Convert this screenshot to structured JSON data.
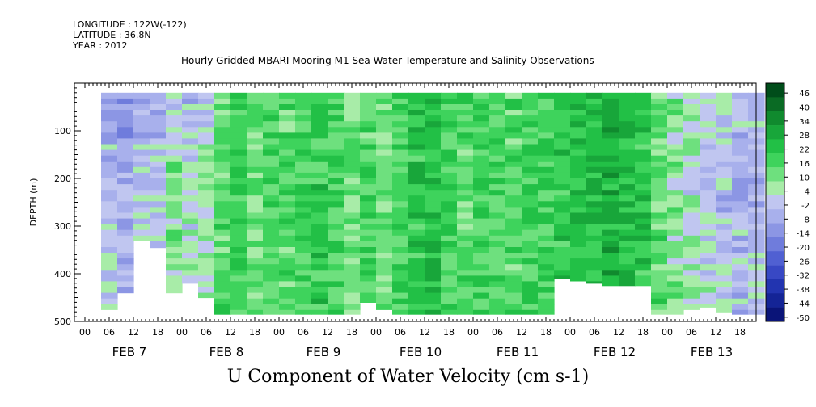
{
  "header": {
    "longitude": "LONGITUDE : 122W(-122)",
    "latitude": "LATITUDE : 36.8N",
    "year": "YEAR : 2012"
  },
  "chart_data": {
    "type": "heatmap",
    "title": "Hourly Gridded MBARI Mooring M1 Sea Water Temperature and Salinity Observations",
    "bottom_title": "U Component of Water Velocity (cm s-1)",
    "ylabel": "DEPTH (m)",
    "ylim": [
      500,
      0
    ],
    "yticks": [
      100,
      200,
      300,
      400,
      500
    ],
    "x_hour_ticks": [
      "00",
      "06",
      "12",
      "18",
      "00",
      "06",
      "12",
      "18",
      "00",
      "06",
      "12",
      "18",
      "00",
      "06",
      "12",
      "18",
      "00",
      "06",
      "12",
      "18",
      "00",
      "06",
      "12",
      "18",
      "00",
      "06",
      "12",
      "18"
    ],
    "x_days": [
      "FEB 7",
      "FEB 8",
      "FEB 9",
      "FEB 10",
      "FEB 11",
      "FEB 12",
      "FEB 13"
    ],
    "data_extent": {
      "depth_min_m": 20,
      "depth_max_m": 485
    },
    "colorbar": {
      "levels": [
        46,
        40,
        34,
        28,
        22,
        16,
        10,
        4,
        -2,
        -8,
        -14,
        -20,
        -26,
        -32,
        -38,
        -44,
        -50
      ],
      "colors_high_to_low": [
        "#004d1a",
        "#0a6b24",
        "#108a2e",
        "#18a63a",
        "#22c046",
        "#3ed35c",
        "#6ee07e",
        "#a8eca8",
        "#c0c6f0",
        "#a8b0ec",
        "#8c96e4",
        "#6f7cdc",
        "#5060d2",
        "#3848c4",
        "#2234b0",
        "#142496",
        "#0a1478"
      ]
    },
    "columns": [
      {
        "day_offset": 0.167,
        "mean": -8,
        "bottom": 475
      },
      {
        "day_offset": 0.333,
        "mean": -12,
        "bottom": 440
      },
      {
        "day_offset": 0.5,
        "mean": -6,
        "bottom": 330
      },
      {
        "day_offset": 0.667,
        "mean": -4,
        "bottom": 345
      },
      {
        "day_offset": 0.833,
        "mean": 4,
        "bottom": 440
      },
      {
        "day_offset": 1.0,
        "mean": -2,
        "bottom": 420
      },
      {
        "day_offset": 1.167,
        "mean": 0,
        "bottom": 450
      },
      {
        "day_offset": 1.333,
        "mean": 10,
        "bottom": 485
      },
      {
        "day_offset": 1.5,
        "mean": 14,
        "bottom": 485
      },
      {
        "day_offset": 1.667,
        "mean": 8,
        "bottom": 485
      },
      {
        "day_offset": 1.833,
        "mean": 12,
        "bottom": 485
      },
      {
        "day_offset": 2.0,
        "mean": 10,
        "bottom": 485
      },
      {
        "day_offset": 2.167,
        "mean": 14,
        "bottom": 485
      },
      {
        "day_offset": 2.333,
        "mean": 16,
        "bottom": 485
      },
      {
        "day_offset": 2.5,
        "mean": 12,
        "bottom": 485
      },
      {
        "day_offset": 2.667,
        "mean": 6,
        "bottom": 485
      },
      {
        "day_offset": 2.833,
        "mean": 10,
        "bottom": 460
      },
      {
        "day_offset": 3.0,
        "mean": 8,
        "bottom": 475
      },
      {
        "day_offset": 3.167,
        "mean": 14,
        "bottom": 485
      },
      {
        "day_offset": 3.333,
        "mean": 16,
        "bottom": 485
      },
      {
        "day_offset": 3.5,
        "mean": 18,
        "bottom": 485
      },
      {
        "day_offset": 3.667,
        "mean": 12,
        "bottom": 485
      },
      {
        "day_offset": 3.833,
        "mean": 10,
        "bottom": 485
      },
      {
        "day_offset": 4.0,
        "mean": 14,
        "bottom": 485
      },
      {
        "day_offset": 4.167,
        "mean": 12,
        "bottom": 485
      },
      {
        "day_offset": 4.333,
        "mean": 10,
        "bottom": 485
      },
      {
        "day_offset": 4.5,
        "mean": 14,
        "bottom": 485
      },
      {
        "day_offset": 4.667,
        "mean": 12,
        "bottom": 485
      },
      {
        "day_offset": 4.833,
        "mean": 16,
        "bottom": 410
      },
      {
        "day_offset": 5.0,
        "mean": 18,
        "bottom": 415
      },
      {
        "day_offset": 5.167,
        "mean": 20,
        "bottom": 420
      },
      {
        "day_offset": 5.333,
        "mean": 22,
        "bottom": 425
      },
      {
        "day_offset": 5.5,
        "mean": 20,
        "bottom": 425
      },
      {
        "day_offset": 5.667,
        "mean": 16,
        "bottom": 425
      },
      {
        "day_offset": 5.833,
        "mean": 10,
        "bottom": 485
      },
      {
        "day_offset": 6.0,
        "mean": 4,
        "bottom": 485
      },
      {
        "day_offset": 6.167,
        "mean": 2,
        "bottom": 475
      },
      {
        "day_offset": 6.333,
        "mean": -2,
        "bottom": 470
      },
      {
        "day_offset": 6.5,
        "mean": -4,
        "bottom": 480
      },
      {
        "day_offset": 6.667,
        "mean": -8,
        "bottom": 485
      },
      {
        "day_offset": 6.833,
        "mean": -6,
        "bottom": 485
      }
    ]
  }
}
